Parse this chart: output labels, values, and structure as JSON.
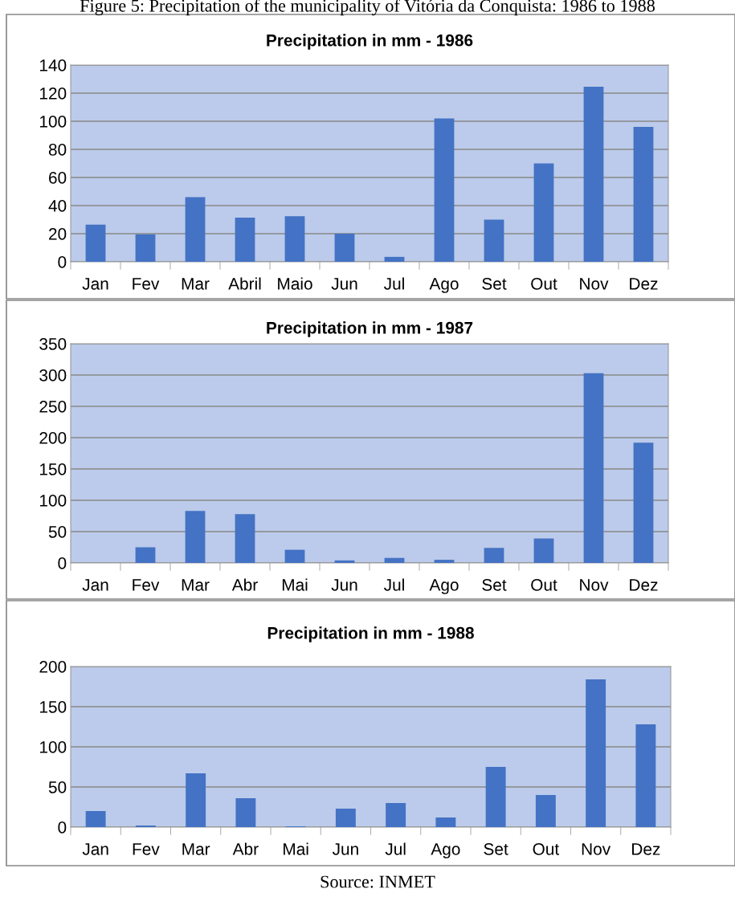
{
  "chart_data": [
    {
      "type": "bar",
      "title": "Precipitation in mm - 1986",
      "annotations": [
        "Figure 5: Precipitation of the municipality of Vitória da Conquista: 1986 to 1988"
      ],
      "categories": [
        "Jan",
        "Fev",
        "Mar",
        "Abril",
        "Maio",
        "Jun",
        "Jul",
        "Ago",
        "Set",
        "Out",
        "Nov",
        "Dez"
      ],
      "values": [
        26.5,
        19.5,
        46,
        31.5,
        32.5,
        20,
        3.5,
        102,
        30,
        70,
        124.5,
        96
      ],
      "color": "#4472c4",
      "ylim": [
        0,
        140
      ],
      "yticks": [
        0,
        20,
        40,
        60,
        80,
        100,
        120,
        140
      ],
      "grid": "y"
    },
    {
      "type": "bar",
      "title": "Precipitation in mm - 1987",
      "categories": [
        "Jan",
        "Fev",
        "Mar",
        "Abr",
        "Mai",
        "Jun",
        "Jul",
        "Ago",
        "Set",
        "Out",
        "Nov",
        "Dez"
      ],
      "values": [
        0,
        25,
        83,
        78,
        21,
        4,
        8,
        5,
        24,
        39,
        303,
        192
      ],
      "color": "#4472c4",
      "ylim": [
        0,
        350
      ],
      "yticks": [
        0,
        50,
        100,
        150,
        200,
        250,
        300,
        350
      ],
      "grid": "y"
    },
    {
      "type": "bar",
      "title": "Precipitation in mm - 1988",
      "annotations": [
        "Source: INMET"
      ],
      "categories": [
        "Jan",
        "Fev",
        "Mar",
        "Abr",
        "Mai",
        "Jun",
        "Jul",
        "Ago",
        "Set",
        "Out",
        "Nov",
        "Dez"
      ],
      "values": [
        20,
        2,
        67,
        36,
        1,
        23,
        30,
        12,
        75,
        40,
        184,
        128
      ],
      "color": "#4472c4",
      "ylim": [
        0,
        200
      ],
      "yticks": [
        0,
        50,
        100,
        150,
        200
      ],
      "grid": "y"
    }
  ]
}
